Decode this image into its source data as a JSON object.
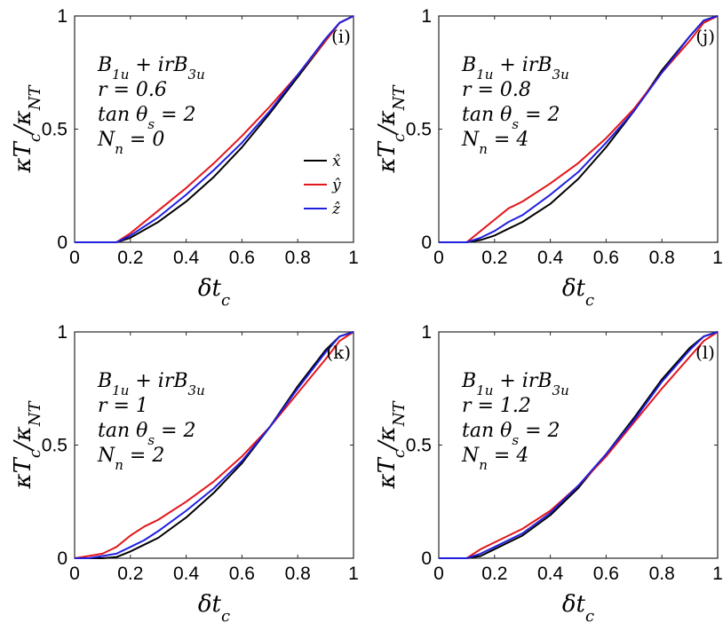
{
  "colors": {
    "x_hat": "#000000",
    "y_hat": "#e3161b",
    "z_hat": "#1f1fe0"
  },
  "legend": [
    "x̂",
    "ŷ",
    "ẑ"
  ],
  "chart_data": [
    {
      "type": "line",
      "panel": "(i)",
      "xlabel": "δt_c",
      "ylabel": "κT_c/κ_NT",
      "xlim": [
        0,
        1
      ],
      "ylim": [
        0,
        1
      ],
      "xticks": [
        "0",
        "0.2",
        "0.4",
        "0.6",
        "0.8",
        "1"
      ],
      "yticks": [
        "0",
        "0.5",
        "1"
      ],
      "annotations": [
        "B_1u + irB_3u",
        "r = 0.6",
        "tan θ_s = 2",
        "N_n = 0"
      ],
      "legend_shown": true,
      "x": [
        0,
        0.1,
        0.15,
        0.2,
        0.3,
        0.4,
        0.5,
        0.6,
        0.7,
        0.8,
        0.9,
        0.95,
        1.0
      ],
      "series": [
        {
          "name": "x̂",
          "values": [
            0,
            0,
            0,
            0.02,
            0.09,
            0.18,
            0.29,
            0.42,
            0.57,
            0.73,
            0.89,
            0.97,
            1.0
          ]
        },
        {
          "name": "ŷ",
          "values": [
            0,
            0,
            0,
            0.04,
            0.14,
            0.24,
            0.35,
            0.47,
            0.6,
            0.74,
            0.89,
            0.97,
            1.0
          ]
        },
        {
          "name": "ẑ",
          "values": [
            0,
            0,
            0,
            0.03,
            0.11,
            0.21,
            0.32,
            0.44,
            0.58,
            0.74,
            0.9,
            0.97,
            1.0
          ]
        }
      ]
    },
    {
      "type": "line",
      "panel": "(j)",
      "xlabel": "δt_c",
      "ylabel": "κT_c/κ_NT",
      "xlim": [
        0,
        1
      ],
      "ylim": [
        0,
        1
      ],
      "xticks": [
        "0",
        "0.2",
        "0.4",
        "0.6",
        "0.8",
        "1"
      ],
      "yticks": [
        "0",
        "0.5",
        "1"
      ],
      "annotations": [
        "B_1u + irB_3u",
        "r = 0.8",
        "tan θ_s = 2",
        "N_n = 4"
      ],
      "legend_shown": false,
      "x": [
        0,
        0.1,
        0.15,
        0.2,
        0.25,
        0.3,
        0.4,
        0.5,
        0.6,
        0.7,
        0.8,
        0.9,
        0.95,
        1.0
      ],
      "series": [
        {
          "name": "x̂",
          "values": [
            0,
            0,
            0.01,
            0.03,
            0.06,
            0.09,
            0.17,
            0.28,
            0.42,
            0.58,
            0.76,
            0.91,
            0.98,
            1.0
          ]
        },
        {
          "name": "ŷ",
          "values": [
            0,
            0,
            0.05,
            0.1,
            0.15,
            0.18,
            0.26,
            0.35,
            0.46,
            0.59,
            0.75,
            0.89,
            0.97,
            1.0
          ]
        },
        {
          "name": "ẑ",
          "values": [
            0,
            0,
            0.02,
            0.05,
            0.09,
            0.12,
            0.21,
            0.31,
            0.44,
            0.58,
            0.75,
            0.91,
            0.98,
            1.0
          ]
        }
      ]
    },
    {
      "type": "line",
      "panel": "(k)",
      "xlabel": "δt_c",
      "ylabel": "κT_c/κ_NT",
      "xlim": [
        0,
        1
      ],
      "ylim": [
        0,
        1
      ],
      "xticks": [
        "0",
        "0.2",
        "0.4",
        "0.6",
        "0.8",
        "1"
      ],
      "yticks": [
        "0",
        "0.5",
        "1"
      ],
      "annotations": [
        "B_1u + irB_3u",
        "r = 1",
        "tan θ_s = 2",
        "N_n = 2"
      ],
      "legend_shown": false,
      "x": [
        0,
        0.05,
        0.1,
        0.15,
        0.2,
        0.25,
        0.3,
        0.4,
        0.5,
        0.6,
        0.7,
        0.8,
        0.9,
        0.95,
        1.0
      ],
      "series": [
        {
          "name": "x̂",
          "values": [
            0,
            0,
            0,
            0.005,
            0.03,
            0.06,
            0.09,
            0.18,
            0.29,
            0.42,
            0.58,
            0.76,
            0.92,
            0.98,
            1.0
          ]
        },
        {
          "name": "ŷ",
          "values": [
            0,
            0.01,
            0.02,
            0.05,
            0.1,
            0.14,
            0.17,
            0.25,
            0.34,
            0.45,
            0.58,
            0.73,
            0.88,
            0.96,
            1.0
          ]
        },
        {
          "name": "ẑ",
          "values": [
            0,
            0,
            0.01,
            0.02,
            0.05,
            0.08,
            0.12,
            0.21,
            0.31,
            0.43,
            0.58,
            0.75,
            0.91,
            0.98,
            1.0
          ]
        }
      ]
    },
    {
      "type": "line",
      "panel": "(l)",
      "xlabel": "δt_c",
      "ylabel": "κT_c/κ_NT",
      "xlim": [
        0,
        1
      ],
      "ylim": [
        0,
        1
      ],
      "xticks": [
        "0",
        "0.2",
        "0.4",
        "0.6",
        "0.8",
        "1"
      ],
      "yticks": [
        "0",
        "0.5",
        "1"
      ],
      "annotations": [
        "B_1u + irB_3u",
        "r = 1.2",
        "tan θ_s = 2",
        "N_n = 4"
      ],
      "legend_shown": false,
      "x": [
        0,
        0.1,
        0.15,
        0.2,
        0.25,
        0.3,
        0.4,
        0.5,
        0.6,
        0.7,
        0.8,
        0.9,
        0.95,
        1.0
      ],
      "series": [
        {
          "name": "x̂",
          "values": [
            0,
            0,
            0.01,
            0.04,
            0.07,
            0.1,
            0.19,
            0.31,
            0.46,
            0.62,
            0.79,
            0.93,
            0.98,
            1.0
          ]
        },
        {
          "name": "ŷ",
          "values": [
            0,
            0,
            0.04,
            0.07,
            0.1,
            0.13,
            0.21,
            0.32,
            0.45,
            0.6,
            0.75,
            0.89,
            0.96,
            1.0
          ]
        },
        {
          "name": "ẑ",
          "values": [
            0,
            0,
            0.02,
            0.05,
            0.08,
            0.11,
            0.2,
            0.32,
            0.46,
            0.61,
            0.78,
            0.92,
            0.98,
            1.0
          ]
        }
      ]
    }
  ]
}
